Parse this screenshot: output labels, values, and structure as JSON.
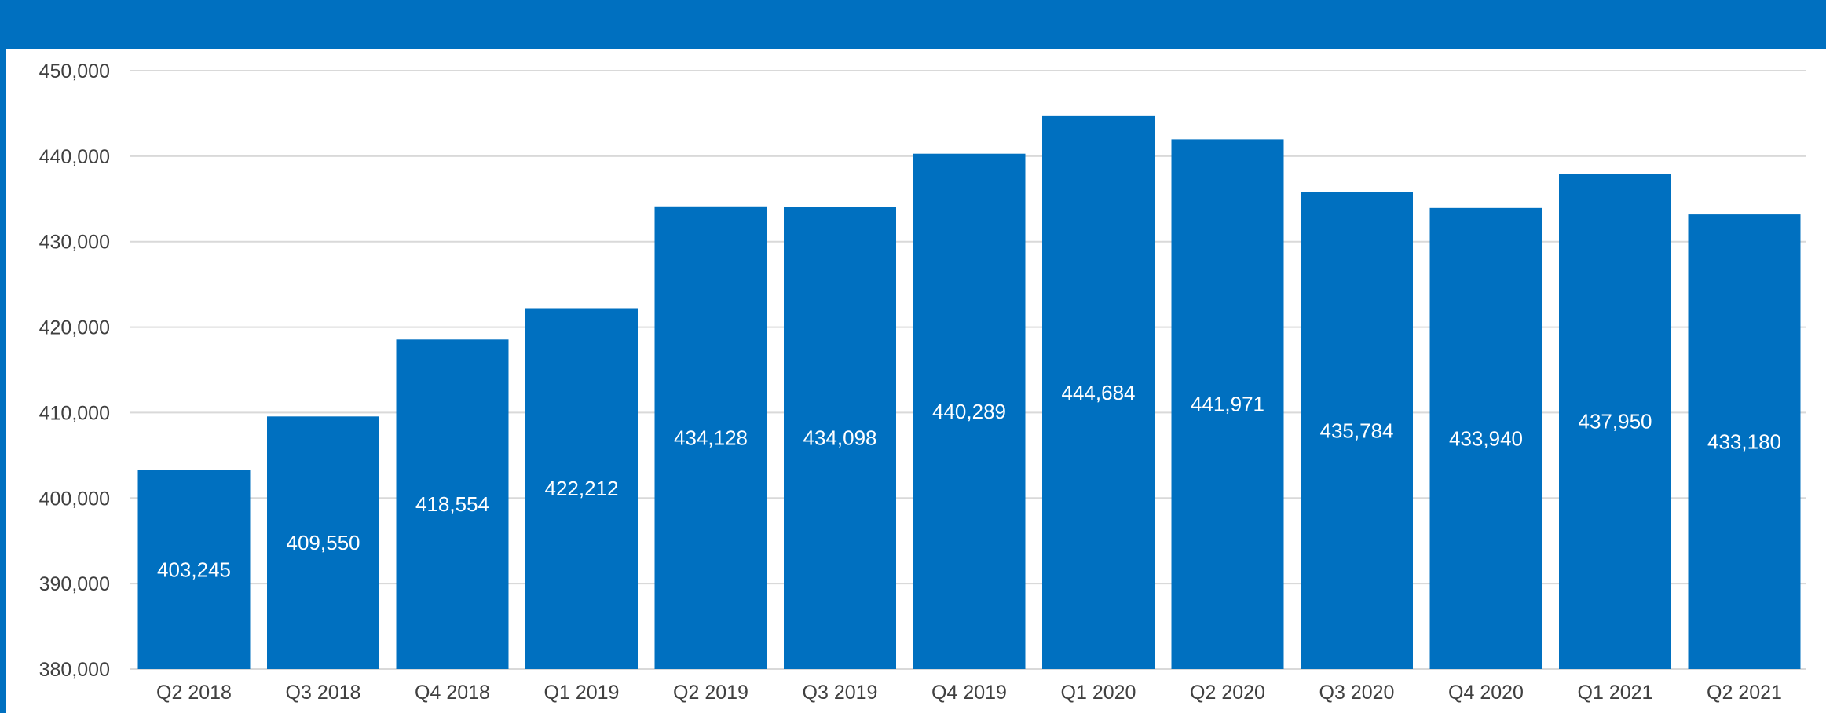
{
  "chart_data": {
    "type": "bar",
    "title": "",
    "xlabel": "",
    "ylabel": "",
    "categories": [
      "Q2 2018",
      "Q3 2018",
      "Q4 2018",
      "Q1 2019",
      "Q2 2019",
      "Q3 2019",
      "Q4 2019",
      "Q1 2020",
      "Q2 2020",
      "Q3 2020",
      "Q4 2020",
      "Q1 2021",
      "Q2 2021"
    ],
    "values": [
      403245,
      409550,
      418554,
      422212,
      434128,
      434098,
      440289,
      444684,
      441971,
      435784,
      433940,
      437950,
      433180
    ],
    "value_labels": [
      "403,245",
      "409,550",
      "418,554",
      "422,212",
      "434,128",
      "434,098",
      "440,289",
      "444,684",
      "441,971",
      "435,784",
      "433,940",
      "437,950",
      "433,180"
    ],
    "ylim": [
      380000,
      450000
    ],
    "y_ticks": [
      380000,
      390000,
      400000,
      410000,
      420000,
      430000,
      440000,
      450000
    ],
    "y_tick_labels": [
      "380,000",
      "390,000",
      "400,000",
      "410,000",
      "420,000",
      "430,000",
      "440,000",
      "450,000"
    ],
    "grid": true,
    "legend": "none",
    "colors": {
      "bar": "#0070c0",
      "header": "#0070c0",
      "grid": "#d9d9d9",
      "tick_text": "#404040",
      "label_text": "#ffffff"
    }
  }
}
